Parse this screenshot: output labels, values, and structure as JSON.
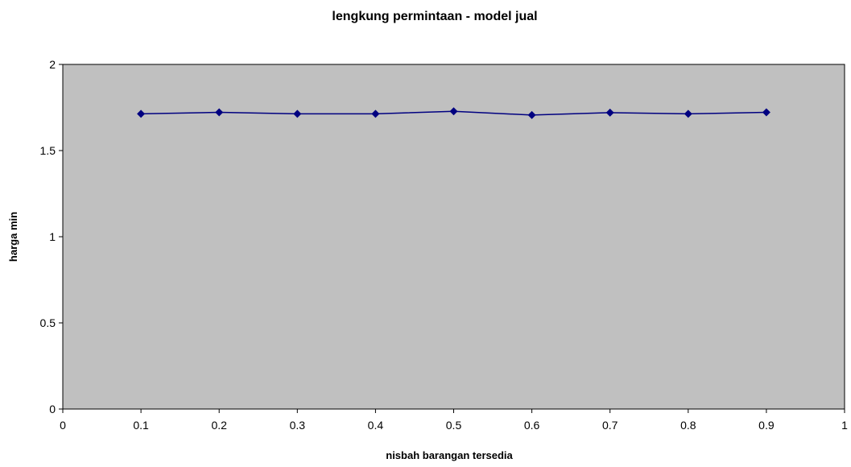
{
  "chart_data": {
    "type": "line",
    "title": "lengkung permintaan - model jual",
    "xlabel": "nisbah barangan tersedia",
    "ylabel": "harga min",
    "xlim": [
      0,
      1
    ],
    "ylim": [
      0,
      2
    ],
    "x_ticks": [
      0,
      0.1,
      0.2,
      0.3,
      0.4,
      0.5,
      0.6,
      0.7,
      0.8,
      0.9,
      1
    ],
    "x_tick_labels": [
      "0",
      "0.1",
      "0.2",
      "0.3",
      "0.4",
      "0.5",
      "0.6",
      "0.7",
      "0.8",
      "0.9",
      "1"
    ],
    "y_ticks": [
      0,
      0.5,
      1,
      1.5,
      2
    ],
    "y_tick_labels": [
      "0",
      "0.5",
      "1",
      "1.5",
      "2"
    ],
    "grid": false,
    "legend": "none",
    "series": [
      {
        "x": [
          0.1,
          0.2,
          0.3,
          0.4,
          0.5,
          0.6,
          0.7,
          0.8,
          0.9
        ],
        "y": [
          1.713,
          1.722,
          1.713,
          1.713,
          1.728,
          1.706,
          1.72,
          1.713,
          1.722
        ],
        "color": "#000080",
        "marker": "diamond"
      }
    ],
    "plot_background": "#c0c0c0"
  }
}
